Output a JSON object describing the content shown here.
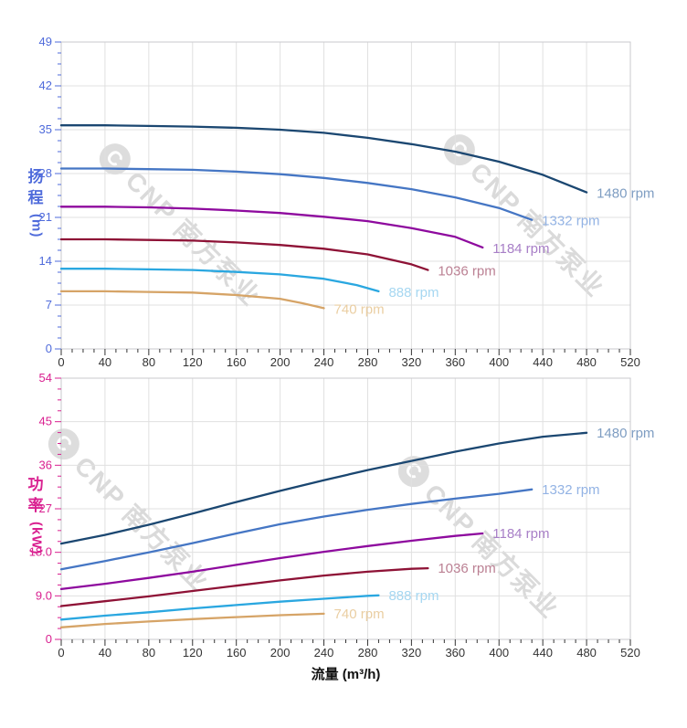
{
  "watermark": {
    "logo": "C",
    "text": "CNP 南方泵业"
  },
  "chart_data": [
    {
      "type": "line",
      "title": "",
      "ylabel": "扬程 (m)",
      "ylabel_chars": [
        "扬",
        "程"
      ],
      "ylabel_unit": "(m)",
      "xlabel": "",
      "xlim": [
        0,
        520
      ],
      "ylim": [
        0,
        49
      ],
      "xtick_step": 40,
      "xminor_step": 10,
      "ytick_step": 7,
      "yminor_divs": 4,
      "grid": true,
      "legend_position": "inline-right",
      "axis_color": "#4f6bdb",
      "xtick_labels": [
        "0",
        "40",
        "80",
        "120",
        "160",
        "200",
        "240",
        "280",
        "320",
        "360",
        "400",
        "440",
        "480",
        "520"
      ],
      "ytick_labels": [
        "0",
        "7",
        "14",
        "21",
        "28",
        "35",
        "42",
        "49"
      ],
      "series": [
        {
          "name": "1480 rpm",
          "color": "#1b4771",
          "label_color": "#7e9dc2",
          "x": [
            0,
            40,
            80,
            120,
            160,
            200,
            240,
            280,
            320,
            360,
            400,
            440,
            480
          ],
          "y": [
            35.7,
            35.7,
            35.6,
            35.5,
            35.3,
            35.0,
            34.5,
            33.7,
            32.7,
            31.5,
            29.9,
            27.8,
            25.0
          ]
        },
        {
          "name": "1332 rpm",
          "color": "#4576c4",
          "label_color": "#93b3e4",
          "x": [
            0,
            40,
            80,
            120,
            160,
            200,
            240,
            280,
            320,
            360,
            400,
            430
          ],
          "y": [
            28.8,
            28.8,
            28.7,
            28.6,
            28.3,
            27.9,
            27.3,
            26.5,
            25.5,
            24.2,
            22.5,
            20.6
          ]
        },
        {
          "name": "1184 rpm",
          "color": "#8e0a9e",
          "label_color": "#a87fc7",
          "x": [
            0,
            40,
            80,
            120,
            160,
            200,
            240,
            280,
            320,
            360,
            385
          ],
          "y": [
            22.7,
            22.7,
            22.6,
            22.4,
            22.1,
            21.7,
            21.1,
            20.4,
            19.3,
            17.9,
            16.2
          ]
        },
        {
          "name": "1036 rpm",
          "color": "#8e1236",
          "label_color": "#bb8093",
          "x": [
            0,
            40,
            80,
            120,
            160,
            200,
            240,
            280,
            320,
            335
          ],
          "y": [
            17.5,
            17.5,
            17.4,
            17.3,
            17.0,
            16.6,
            16.0,
            15.1,
            13.5,
            12.6
          ]
        },
        {
          "name": "888 rpm",
          "color": "#2aa7e0",
          "label_color": "#a6d7f1",
          "x": [
            0,
            40,
            80,
            120,
            160,
            200,
            240,
            270,
            290
          ],
          "y": [
            12.8,
            12.8,
            12.7,
            12.6,
            12.3,
            11.9,
            11.2,
            10.2,
            9.2
          ]
        },
        {
          "name": "740 rpm",
          "color": "#d6a467",
          "label_color": "#eacea2",
          "x": [
            0,
            40,
            80,
            120,
            160,
            200,
            220,
            240
          ],
          "y": [
            9.2,
            9.2,
            9.1,
            9.0,
            8.6,
            8.0,
            7.3,
            6.5
          ]
        }
      ]
    },
    {
      "type": "line",
      "title": "",
      "ylabel": "功率 (kW)",
      "ylabel_chars": [
        "功",
        "率"
      ],
      "ylabel_unit": "(kW)",
      "xlabel": "流量 (m³/h)",
      "xlim": [
        0,
        520
      ],
      "ylim": [
        0,
        54
      ],
      "xtick_step": 40,
      "xminor_step": 10,
      "ytick_step": 9,
      "yminor_divs": 4,
      "grid": true,
      "legend_position": "inline-right",
      "axis_color": "#d92090",
      "xtick_labels": [
        "0",
        "40",
        "80",
        "120",
        "160",
        "200",
        "240",
        "280",
        "320",
        "360",
        "400",
        "440",
        "480",
        "520"
      ],
      "ytick_labels": [
        "0",
        "9.0",
        "18.0",
        "27",
        "36",
        "45",
        "54"
      ],
      "series": [
        {
          "name": "1480 rpm",
          "color": "#1b4771",
          "label_color": "#7e9dc2",
          "x": [
            0,
            40,
            80,
            120,
            160,
            200,
            240,
            280,
            320,
            360,
            400,
            440,
            480
          ],
          "y": [
            19.8,
            21.6,
            23.7,
            26.0,
            28.4,
            30.7,
            32.9,
            35.0,
            36.9,
            38.8,
            40.5,
            41.9,
            42.7
          ]
        },
        {
          "name": "1332 rpm",
          "color": "#4576c4",
          "label_color": "#93b3e4",
          "x": [
            0,
            40,
            80,
            120,
            160,
            200,
            240,
            280,
            320,
            360,
            400,
            430
          ],
          "y": [
            14.5,
            16.2,
            18.0,
            19.9,
            21.9,
            23.8,
            25.4,
            26.8,
            28.0,
            29.1,
            30.1,
            31.0
          ]
        },
        {
          "name": "1184 rpm",
          "color": "#8e0a9e",
          "label_color": "#a87fc7",
          "x": [
            0,
            40,
            80,
            120,
            160,
            200,
            240,
            280,
            320,
            360,
            385
          ],
          "y": [
            10.4,
            11.5,
            12.7,
            14.0,
            15.4,
            16.8,
            18.1,
            19.3,
            20.4,
            21.4,
            21.9
          ]
        },
        {
          "name": "1036 rpm",
          "color": "#8e1236",
          "label_color": "#bb8093",
          "x": [
            0,
            40,
            80,
            120,
            160,
            200,
            240,
            280,
            320,
            335
          ],
          "y": [
            6.9,
            7.9,
            8.9,
            10.0,
            11.1,
            12.2,
            13.2,
            14.0,
            14.6,
            14.7
          ]
        },
        {
          "name": "888 rpm",
          "color": "#2aa7e0",
          "label_color": "#a6d7f1",
          "x": [
            0,
            40,
            80,
            120,
            160,
            200,
            240,
            280,
            290
          ],
          "y": [
            4.1,
            4.9,
            5.6,
            6.4,
            7.1,
            7.8,
            8.4,
            9.0,
            9.1
          ]
        },
        {
          "name": "740 rpm",
          "color": "#d6a467",
          "label_color": "#eacea2",
          "x": [
            0,
            40,
            80,
            120,
            160,
            200,
            240
          ],
          "y": [
            2.5,
            3.2,
            3.7,
            4.2,
            4.6,
            5.0,
            5.3
          ]
        }
      ]
    }
  ]
}
